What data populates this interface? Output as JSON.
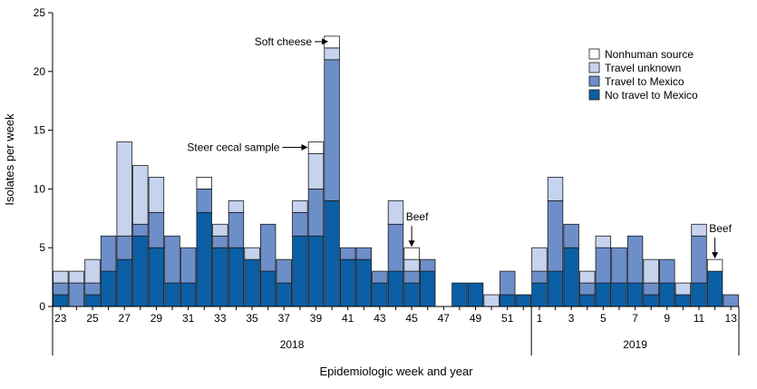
{
  "chart_data": {
    "type": "bar",
    "stacked": true,
    "title": "",
    "ylabel": "Isolates per week",
    "xlabel": "Epidemiologic week and year",
    "ylim": [
      0,
      25
    ],
    "yticks": [
      0,
      5,
      10,
      15,
      20,
      25
    ],
    "categories": [
      "23",
      "24",
      "25",
      "26",
      "27",
      "28",
      "29",
      "30",
      "31",
      "32",
      "33",
      "34",
      "35",
      "36",
      "37",
      "38",
      "39",
      "40",
      "41",
      "42",
      "43",
      "44",
      "45",
      "46",
      "47",
      "48",
      "49",
      "50",
      "51",
      "52",
      "1",
      "2",
      "3",
      "4",
      "5",
      "6",
      "7",
      "8",
      "9",
      "10",
      "11",
      "12",
      "13"
    ],
    "xtick_labels": [
      "23",
      "25",
      "27",
      "29",
      "31",
      "33",
      "35",
      "37",
      "39",
      "41",
      "43",
      "45",
      "47",
      "49",
      "51",
      "1",
      "3",
      "5",
      "7",
      "9",
      "11",
      "13"
    ],
    "years": [
      {
        "label": "2018",
        "from": "23",
        "to": "52"
      },
      {
        "label": "2019",
        "from": "1",
        "to": "13"
      }
    ],
    "series": [
      {
        "name": "No travel to Mexico",
        "color": "#0b5fa5",
        "values": [
          1,
          0,
          1,
          3,
          4,
          6,
          5,
          2,
          2,
          8,
          5,
          5,
          4,
          3,
          2,
          6,
          6,
          9,
          4,
          4,
          2,
          3,
          2,
          3,
          0,
          2,
          2,
          0,
          1,
          1,
          2,
          3,
          5,
          1,
          2,
          2,
          2,
          1,
          2,
          1,
          2,
          3,
          0
        ]
      },
      {
        "name": "Travel to Mexico",
        "color": "#6d8fc9",
        "values": [
          1,
          2,
          1,
          3,
          2,
          1,
          3,
          4,
          3,
          2,
          1,
          3,
          0,
          4,
          2,
          2,
          4,
          12,
          1,
          1,
          1,
          4,
          1,
          1,
          0,
          0,
          0,
          0,
          2,
          0,
          1,
          6,
          2,
          1,
          3,
          3,
          4,
          1,
          2,
          0,
          4,
          0,
          1
        ]
      },
      {
        "name": "Travel unknown",
        "color": "#c6d3ee",
        "values": [
          1,
          1,
          2,
          0,
          8,
          5,
          3,
          0,
          0,
          0,
          1,
          1,
          1,
          0,
          0,
          1,
          3,
          1,
          0,
          0,
          0,
          2,
          1,
          0,
          0,
          0,
          0,
          1,
          0,
          0,
          2,
          2,
          0,
          1,
          1,
          0,
          0,
          2,
          0,
          1,
          1,
          0,
          0
        ]
      },
      {
        "name": "Nonhuman source",
        "color": "#ffffff",
        "values": [
          0,
          0,
          0,
          0,
          0,
          0,
          0,
          0,
          0,
          1,
          0,
          0,
          0,
          0,
          0,
          0,
          1,
          1,
          0,
          0,
          0,
          0,
          1,
          0,
          0,
          0,
          0,
          0,
          0,
          0,
          0,
          0,
          0,
          0,
          0,
          0,
          0,
          0,
          0,
          0,
          0,
          1,
          0
        ]
      }
    ],
    "legend": {
      "position": "top-right"
    },
    "annotations": [
      {
        "text": "Soft cheese",
        "week": "40"
      },
      {
        "text": "Steer cecal sample",
        "week": "39"
      },
      {
        "text": "Beef",
        "week": "45"
      },
      {
        "text": "Beef",
        "week": "12"
      }
    ]
  }
}
